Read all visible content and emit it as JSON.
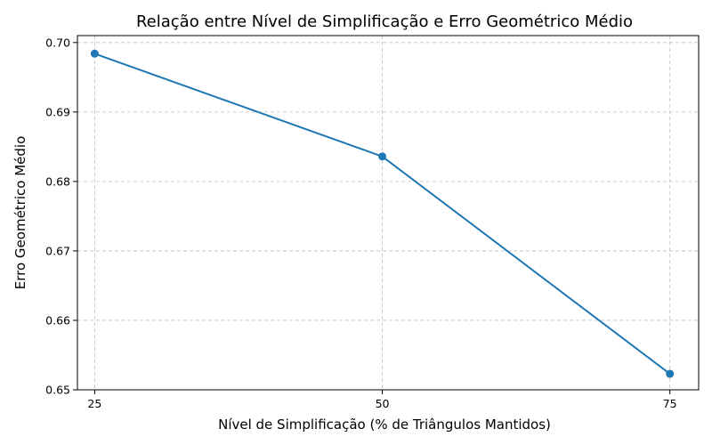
{
  "chart_data": {
    "type": "line",
    "title": "Relação entre Nível de Simplificação e Erro Geométrico Médio",
    "xlabel": "Nível de Simplificação (% de Triângulos Mantidos)",
    "ylabel": "Erro Geométrico Médio",
    "x": [
      25,
      50,
      75
    ],
    "xlim": [
      23.5,
      77.5
    ],
    "ylim": [
      0.65,
      0.701
    ],
    "xticks": [
      "25",
      "50",
      "75"
    ],
    "yticks": [
      "0.65",
      "0.66",
      "0.67",
      "0.68",
      "0.69",
      "0.70"
    ],
    "grid": true,
    "series": [
      {
        "values": [
          0.6984,
          0.6836,
          0.6523
        ],
        "color": "#1f77b4"
      }
    ]
  }
}
